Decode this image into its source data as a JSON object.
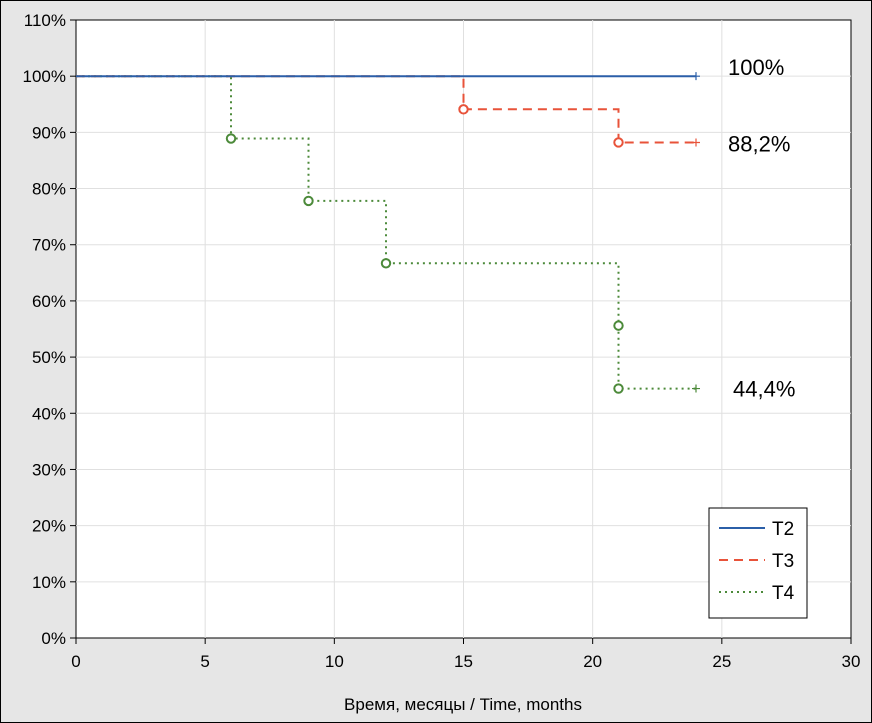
{
  "chart_data": {
    "type": "line",
    "step": true,
    "xlabel": "Время, месяцы / Time, months",
    "ylabel": "",
    "xlim": [
      0,
      30
    ],
    "ylim": [
      0,
      110
    ],
    "x_ticks": [
      0,
      5,
      10,
      15,
      20,
      25,
      30
    ],
    "y_ticks": [
      0,
      10,
      20,
      30,
      40,
      50,
      60,
      70,
      80,
      90,
      100,
      110
    ],
    "y_tick_labels": [
      "0%",
      "10%",
      "20%",
      "30%",
      "40%",
      "50%",
      "60%",
      "70%",
      "80%",
      "90%",
      "100%",
      "110%"
    ],
    "grid": true,
    "legend_position": "bottom-right",
    "series": [
      {
        "name": "T2",
        "color": "#2b5fa8",
        "style": "solid",
        "points": [
          [
            0,
            100
          ],
          [
            24,
            100
          ]
        ],
        "events": [],
        "censored": [
          [
            24,
            100
          ]
        ]
      },
      {
        "name": "T3",
        "color": "#e8533a",
        "style": "dashed",
        "points": [
          [
            0,
            100
          ],
          [
            15,
            100
          ],
          [
            15,
            94.1
          ],
          [
            21,
            94.1
          ],
          [
            21,
            88.2
          ],
          [
            24,
            88.2
          ]
        ],
        "events": [
          [
            15,
            94.1
          ],
          [
            21,
            88.2
          ]
        ],
        "censored": [
          [
            24,
            88.2
          ]
        ]
      },
      {
        "name": "T4",
        "color": "#4c8a3a",
        "style": "dotted",
        "points": [
          [
            0,
            100
          ],
          [
            6,
            100
          ],
          [
            6,
            88.9
          ],
          [
            9,
            88.9
          ],
          [
            9,
            77.8
          ],
          [
            12,
            77.8
          ],
          [
            12,
            66.7
          ],
          [
            21,
            66.7
          ],
          [
            21,
            55.6
          ],
          [
            21,
            44.4
          ],
          [
            24,
            44.4
          ]
        ],
        "events": [
          [
            6,
            88.9
          ],
          [
            9,
            77.8
          ],
          [
            12,
            66.7
          ],
          [
            21,
            55.6
          ],
          [
            21,
            44.4
          ]
        ],
        "censored": [
          [
            24,
            44.4
          ]
        ]
      }
    ],
    "annotations": [
      {
        "text": "100%",
        "x": 24,
        "y": 100,
        "series": "T2"
      },
      {
        "text": "88,2%",
        "x": 24,
        "y": 88.2,
        "series": "T3"
      },
      {
        "text": "44,4%",
        "x": 24,
        "y": 44.4,
        "series": "T4"
      }
    ]
  }
}
